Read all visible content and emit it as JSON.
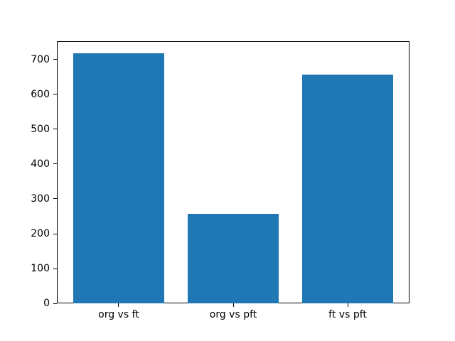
{
  "figure": {
    "background": "#ffffff",
    "spine_color": "#000000",
    "text_color": "#000000"
  },
  "chart_data": {
    "type": "bar",
    "title": "",
    "xlabel": "",
    "ylabel": "",
    "categories": [
      "org vs ft",
      "org vs pft",
      "ft vs pft"
    ],
    "values": [
      717,
      257,
      657
    ],
    "yticks": [
      0,
      100,
      200,
      300,
      400,
      500,
      600,
      700
    ],
    "ylim": [
      0,
      753
    ],
    "bar_color": "#1f77b4",
    "grid": false,
    "legend": null
  }
}
